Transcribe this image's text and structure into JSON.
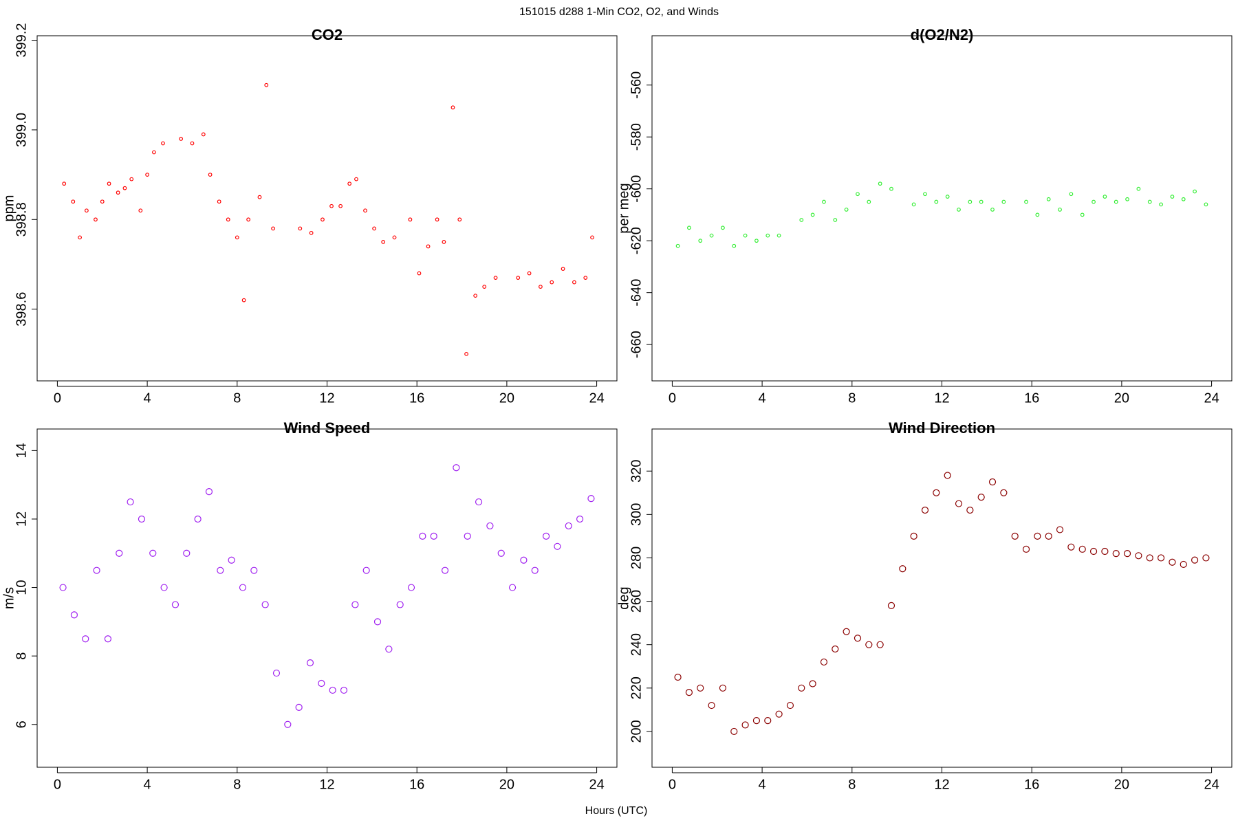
{
  "title": "151015   d288   1-Min CO2, O2, and Winds",
  "xlabel": "Hours (UTC)",
  "chart_data": [
    {
      "type": "scatter",
      "title": "CO2",
      "ylabel": "ppm",
      "color": "#ff0000",
      "x": [
        0.3,
        0.7,
        1.0,
        1.3,
        1.7,
        2.0,
        2.3,
        2.7,
        3.0,
        3.3,
        3.7,
        4.0,
        4.3,
        4.7,
        5.5,
        6.0,
        6.5,
        6.8,
        7.2,
        7.6,
        8.0,
        8.3,
        8.5,
        9.0,
        9.3,
        9.6,
        10.8,
        11.3,
        11.8,
        12.2,
        12.6,
        13.0,
        13.3,
        13.7,
        14.1,
        14.5,
        15.0,
        15.7,
        16.1,
        16.5,
        16.9,
        17.2,
        17.6,
        17.9,
        18.2,
        18.6,
        19.0,
        19.5,
        20.5,
        21.0,
        21.5,
        22.0,
        22.5,
        23.0,
        23.5,
        23.8
      ],
      "values": [
        398.88,
        398.84,
        398.76,
        398.82,
        398.8,
        398.84,
        398.88,
        398.86,
        398.87,
        398.89,
        398.82,
        398.9,
        398.95,
        398.97,
        398.98,
        398.97,
        398.99,
        398.9,
        398.84,
        398.8,
        398.76,
        398.62,
        398.8,
        398.85,
        399.1,
        398.78,
        398.78,
        398.77,
        398.8,
        398.83,
        398.83,
        398.88,
        398.89,
        398.82,
        398.78,
        398.75,
        398.76,
        398.8,
        398.68,
        398.74,
        398.8,
        398.75,
        399.05,
        398.8,
        398.5,
        398.63,
        398.65,
        398.67,
        398.67,
        398.68,
        398.65,
        398.66,
        398.69,
        398.66,
        398.67,
        398.76
      ],
      "xlim": [
        -0.9,
        24.9
      ],
      "xticks": [
        0,
        4,
        8,
        12,
        16,
        20,
        24
      ],
      "ylim": [
        398.44,
        399.21
      ],
      "yticks": [
        398.6,
        398.8,
        {
          "value": 399,
          "label": "399.0"
        },
        399.2
      ]
    },
    {
      "type": "scatter",
      "title": "d(O2/N2)",
      "ylabel": "per meg",
      "color": "#33ee33",
      "x": [
        0.25,
        0.75,
        1.25,
        1.75,
        2.25,
        2.75,
        3.25,
        3.75,
        4.25,
        4.75,
        5.75,
        6.25,
        6.75,
        7.25,
        7.75,
        8.25,
        8.75,
        9.25,
        9.75,
        10.75,
        11.25,
        11.75,
        12.25,
        12.75,
        13.25,
        13.75,
        14.25,
        14.75,
        15.75,
        16.25,
        16.75,
        17.25,
        17.75,
        18.25,
        18.75,
        19.25,
        19.75,
        20.25,
        20.75,
        21.25,
        21.75,
        22.25,
        22.75,
        23.25,
        23.75
      ],
      "values": [
        -622,
        -615,
        -620,
        -618,
        -615,
        -622,
        -618,
        -620,
        -618,
        -618,
        -612,
        -610,
        -605,
        -612,
        -608,
        -602,
        -605,
        -598,
        -600,
        -606,
        -602,
        -605,
        -603,
        -608,
        -605,
        -605,
        -608,
        -605,
        -605,
        -610,
        -604,
        -608,
        -602,
        -610,
        -605,
        -603,
        -605,
        -604,
        -600,
        -605,
        -606,
        -603,
        -604,
        -601,
        -606
      ],
      "xlim": [
        -0.9,
        24.9
      ],
      "xticks": [
        0,
        4,
        8,
        12,
        16,
        20,
        24
      ],
      "ylim": [
        -674,
        -541
      ],
      "yticks": [
        -660,
        -640,
        -620,
        -600,
        -580,
        -560
      ]
    },
    {
      "type": "scatter",
      "title": "Wind Speed",
      "ylabel": "m/s",
      "color": "#a020f0",
      "x": [
        0.25,
        0.75,
        1.25,
        1.75,
        2.25,
        2.75,
        3.25,
        3.75,
        4.25,
        4.75,
        5.25,
        5.75,
        6.25,
        6.75,
        7.25,
        7.75,
        8.25,
        8.75,
        9.25,
        9.75,
        10.25,
        10.75,
        11.25,
        11.75,
        12.25,
        12.75,
        13.25,
        13.75,
        14.25,
        14.75,
        15.25,
        15.75,
        16.25,
        16.75,
        17.25,
        17.75,
        18.25,
        18.75,
        19.25,
        19.75,
        20.25,
        20.75,
        21.25,
        21.75,
        22.25,
        22.75,
        23.25,
        23.75
      ],
      "values": [
        10,
        9.2,
        8.5,
        10.5,
        8.5,
        11,
        12.5,
        12,
        11,
        10,
        9.5,
        11,
        12,
        12.8,
        10.5,
        10.8,
        10,
        10.5,
        9.5,
        7.5,
        6,
        6.5,
        7.8,
        7.2,
        7,
        7,
        9.5,
        10.5,
        9,
        8.2,
        9.5,
        10,
        11.5,
        11.5,
        10.5,
        13.5,
        11.5,
        12.5,
        11.8,
        11,
        10,
        10.8,
        10.5,
        11.5,
        11.2,
        11.8,
        12,
        12.6
      ],
      "xlim": [
        -0.9,
        24.9
      ],
      "xticks": [
        0,
        4,
        8,
        12,
        16,
        20,
        24
      ],
      "ylim": [
        4.75,
        14.63
      ],
      "yticks": [
        6,
        8,
        10,
        12,
        14
      ]
    },
    {
      "type": "scatter",
      "title": "Wind Direction",
      "ylabel": "deg",
      "color": "#8b0000",
      "x": [
        0.25,
        0.75,
        1.25,
        1.75,
        2.25,
        2.75,
        3.25,
        3.75,
        4.25,
        4.75,
        5.25,
        5.75,
        6.25,
        6.75,
        7.25,
        7.75,
        8.25,
        8.75,
        9.25,
        9.75,
        10.25,
        10.75,
        11.25,
        11.75,
        12.25,
        12.75,
        13.25,
        13.75,
        14.25,
        14.75,
        15.25,
        15.75,
        16.25,
        16.75,
        17.25,
        17.75,
        18.25,
        18.75,
        19.25,
        19.75,
        20.25,
        20.75,
        21.25,
        21.75,
        22.25,
        22.75,
        23.25,
        23.75
      ],
      "values": [
        225,
        218,
        220,
        212,
        220,
        200,
        203,
        205,
        205,
        208,
        212,
        220,
        222,
        232,
        238,
        246,
        243,
        240,
        240,
        258,
        275,
        290,
        302,
        310,
        318,
        305,
        302,
        308,
        315,
        310,
        290,
        284,
        290,
        290,
        293,
        285,
        284,
        283,
        283,
        282,
        282,
        281,
        280,
        280,
        278,
        277,
        279,
        280
      ],
      "xlim": [
        -0.9,
        24.9
      ],
      "xticks": [
        0,
        4,
        8,
        12,
        16,
        20,
        24
      ],
      "ylim": [
        183.5,
        339.4
      ],
      "yticks": [
        200,
        220,
        240,
        260,
        280,
        300,
        320
      ]
    }
  ]
}
